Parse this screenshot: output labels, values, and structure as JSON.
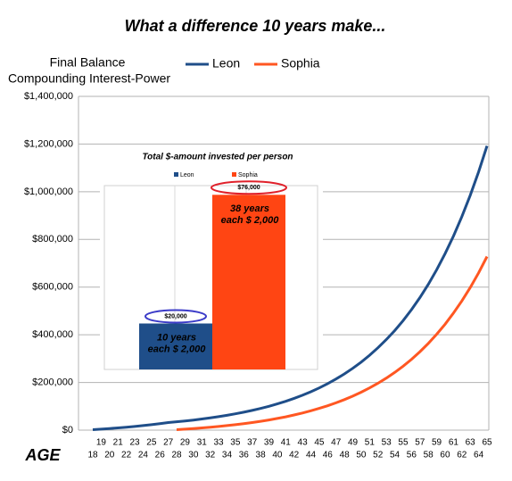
{
  "chart_data": [
    {
      "type": "line",
      "title": "What a difference 10 years make...",
      "ylabel": [
        "Final Balance",
        "Compounding Interest-Power"
      ],
      "xlabel": "AGE",
      "x": [
        18,
        19,
        20,
        21,
        22,
        23,
        24,
        25,
        26,
        27,
        28,
        29,
        30,
        31,
        32,
        33,
        34,
        35,
        36,
        37,
        38,
        39,
        40,
        41,
        42,
        43,
        44,
        45,
        46,
        47,
        48,
        49,
        50,
        51,
        52,
        53,
        54,
        55,
        56,
        57,
        58,
        59,
        60,
        61,
        62,
        63,
        64,
        65
      ],
      "series": [
        {
          "name": "Leon",
          "color": "#1f4e89",
          "values": [
            2000,
            4200,
            6620,
            9282,
            12210,
            15431,
            18974,
            22872,
            27159,
            31875,
            35062,
            38569,
            42425,
            46668,
            51335,
            56468,
            62115,
            68327,
            75159,
            82675,
            90943,
            100037,
            110041,
            121045,
            133150,
            146465,
            161111,
            177222,
            194944,
            214439,
            235883,
            259471,
            285418,
            313960,
            345356,
            379892,
            417881,
            459669,
            505636,
            556200,
            611820,
            673002,
            740302,
            814332,
            895765,
            985342,
            1083876,
            1192264
          ]
        },
        {
          "name": "Sophia",
          "color": "#ff5722",
          "values": [
            null,
            null,
            null,
            null,
            null,
            null,
            null,
            null,
            null,
            null,
            2000,
            4200,
            6620,
            9282,
            12210,
            15431,
            18974,
            22872,
            27159,
            31875,
            37062,
            42769,
            49045,
            55950,
            63545,
            71899,
            81089,
            91198,
            102318,
            114550,
            128005,
            142805,
            159086,
            176995,
            196694,
            218364,
            242200,
            268420,
            297262,
            328988,
            363887,
            402276,
            444503,
            490953,
            542049,
            598254,
            660079,
            728087
          ]
        }
      ],
      "ylim": [
        0,
        1400000
      ],
      "yticks": [
        {
          "value": 0,
          "label": "$0"
        },
        {
          "value": 200000,
          "label": "$200,000"
        },
        {
          "value": 400000,
          "label": "$400,000"
        },
        {
          "value": 600000,
          "label": "$600,000"
        },
        {
          "value": 800000,
          "label": "$800,000"
        },
        {
          "value": 1000000,
          "label": "$1,000,000"
        },
        {
          "value": 1200000,
          "label": "$1,200,000"
        },
        {
          "value": 1400000,
          "label": "$1,400,000"
        }
      ],
      "grid": true,
      "legend": "top"
    },
    {
      "type": "bar",
      "title": "Total $-amount invested per person",
      "series": [
        {
          "name": "Leon",
          "color": "#1f4e89",
          "values": [
            20000
          ],
          "value_labels": [
            "$20,000"
          ],
          "annotation": [
            "10 years",
            "each $ 2,000"
          ]
        },
        {
          "name": "Sophia",
          "color": "#ff4513",
          "values": [
            76000
          ],
          "value_labels": [
            "$76,000"
          ],
          "annotation": [
            "38 years",
            "each $ 2,000"
          ]
        }
      ],
      "ylim": [
        0,
        80000
      ],
      "legend": "top"
    }
  ]
}
